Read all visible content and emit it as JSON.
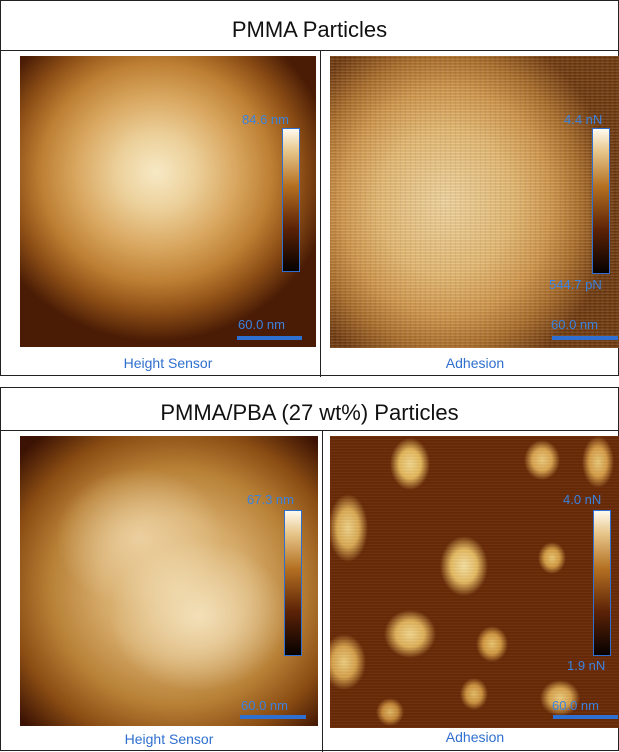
{
  "top": {
    "title": "PMMA Particles",
    "left": {
      "caption": "Height Sensor",
      "colorbar_max": "84.6 nm",
      "scale": "60.0 nm"
    },
    "right": {
      "caption": "Adhesion",
      "colorbar_max": "4.4 nN",
      "colorbar_min": "544.7 pN",
      "scale": "60.0 nm"
    }
  },
  "bottom": {
    "title": "PMMA/PBA (27 wt%)  Particles",
    "left": {
      "caption": "Height Sensor",
      "colorbar_max": "67.3 nm",
      "scale": "60.0 nm"
    },
    "right": {
      "caption": "Adhesion",
      "colorbar_max": "4.0 nN",
      "colorbar_min": "1.9 nN",
      "scale": "60.0 nm"
    }
  },
  "colors": {
    "label_blue": "#3a82e0",
    "scale_bar_blue": "#2e6fd2",
    "colormap": [
      "#1a0300",
      "#6b2a00",
      "#b8741c",
      "#e6c07a",
      "#fff8e8"
    ]
  }
}
